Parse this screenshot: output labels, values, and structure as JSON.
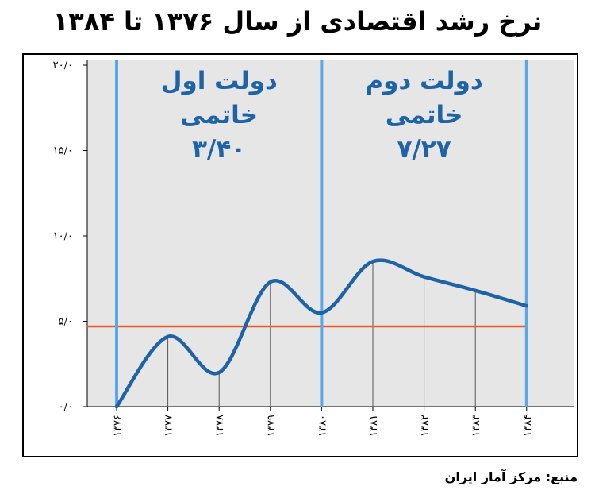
{
  "title": "نرخ رشد اقتصادی از سال ۱۳۷۶ تا ۱۳۸۴",
  "source": "منبع: مرکز آمار ایران",
  "colors": {
    "line": "#1f63a7",
    "average_line": "#f05a22",
    "divider": "#5aa7ea",
    "panel_shade": "#e6e6e6",
    "annotation": "#1f63a7"
  },
  "chart_data": {
    "type": "line",
    "x": [
      "۱۳۷۶",
      "۱۳۷۷",
      "۱۳۷۸",
      "۱۳۷۹",
      "۱۳۸۰",
      "۱۳۸۱",
      "۱۳۸۲",
      "۱۳۸۳",
      "۱۳۸۴"
    ],
    "values": [
      0.0,
      4.1,
      2.0,
      7.3,
      5.5,
      8.5,
      7.6,
      6.8,
      5.9
    ],
    "ylim": [
      0,
      20
    ],
    "yticks": [
      {
        "value": 0,
        "label": "۰/۰"
      },
      {
        "value": 5,
        "label": "۵/۰"
      },
      {
        "value": 10,
        "label": "۱۰/۰"
      },
      {
        "value": 15,
        "label": "۱۵/۰"
      },
      {
        "value": 20,
        "label": "۲۰/۰"
      }
    ],
    "reference_line": 4.7,
    "dividers_at": [
      "۱۳۷۶",
      "۱۳۸۰",
      "۱۳۸۴"
    ],
    "annotations": [
      {
        "lines": [
          "دولت اول",
          "خاتمی",
          "۳/۴۰"
        ],
        "between": [
          "۱۳۷۶",
          "۱۳۸۰"
        ]
      },
      {
        "lines": [
          "دولت دوم",
          "خاتمی",
          "۷/۲۷"
        ],
        "between": [
          "۱۳۸۰",
          "۱۳۸۴"
        ]
      }
    ],
    "grid": false,
    "legend": "none"
  }
}
